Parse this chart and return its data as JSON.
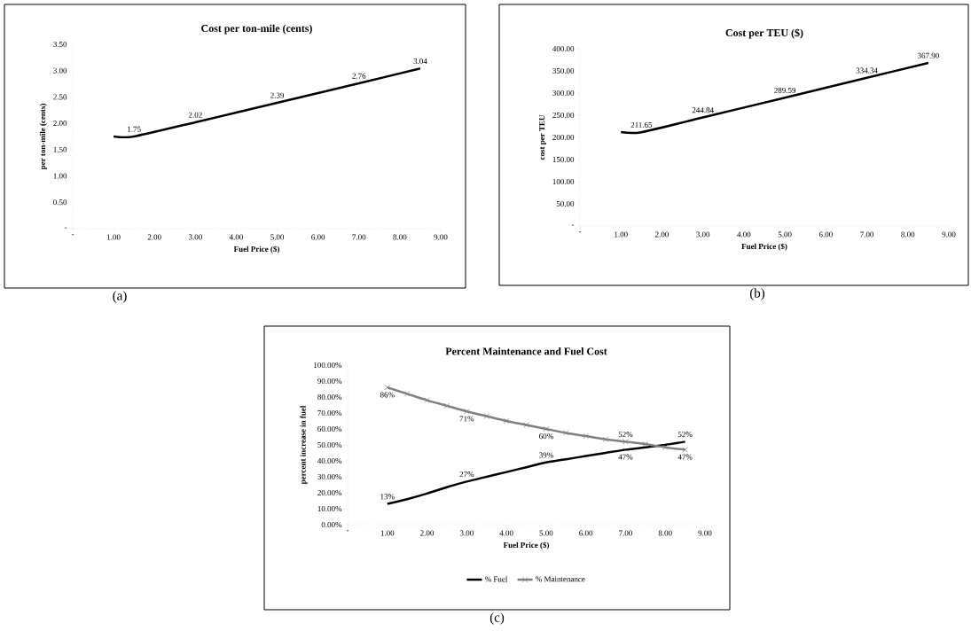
{
  "chart_data": [
    {
      "type": "line",
      "title": "Cost per ton-mile (cents)",
      "xlabel": "Fuel Price ($)",
      "ylabel": "per ton-mile (cents)",
      "x": [
        1,
        1.5,
        3,
        5,
        7,
        8.5
      ],
      "series": [
        {
          "color": "#000000",
          "values": [
            1.75,
            1.75,
            2.02,
            2.39,
            2.76,
            3.04
          ],
          "value_labels": [
            null,
            "1.75",
            "2.02",
            "2.39",
            "2.76",
            "3.04"
          ]
        }
      ],
      "xlim": [
        0,
        9
      ],
      "ylim": [
        0,
        3.5
      ],
      "xticks": [
        {
          "value": 0,
          "label": "-"
        },
        {
          "value": 1,
          "label": "1.00"
        },
        {
          "value": 2,
          "label": "2.00"
        },
        {
          "value": 3,
          "label": "3.00"
        },
        {
          "value": 4,
          "label": "4.00"
        },
        {
          "value": 5,
          "label": "5.00"
        },
        {
          "value": 6,
          "label": "6.00"
        },
        {
          "value": 7,
          "label": "7.00"
        },
        {
          "value": 8,
          "label": "8.00"
        },
        {
          "value": 9,
          "label": "9.00"
        }
      ],
      "yticks": [
        {
          "value": 0,
          "label": "-"
        },
        {
          "value": 0.5,
          "label": "0.50"
        },
        {
          "value": 1,
          "label": "1.00"
        },
        {
          "value": 1.5,
          "label": "1.50"
        },
        {
          "value": 2,
          "label": "2.00"
        },
        {
          "value": 2.5,
          "label": "2.50"
        },
        {
          "value": 3,
          "label": "3.00"
        },
        {
          "value": 3.5,
          "label": "3.50"
        }
      ],
      "annotations": [
        "(a)"
      ]
    },
    {
      "type": "line",
      "title": "Cost per TEU ($)",
      "xlabel": "Fuel Price ($)",
      "ylabel": "cost per TEU",
      "x": [
        1,
        1.5,
        3,
        5,
        7,
        8.5
      ],
      "series": [
        {
          "color": "#000000",
          "values": [
            212,
            211.65,
            244.84,
            289.59,
            334.34,
            367.9
          ],
          "value_labels": [
            null,
            "211.65",
            "244.84",
            "289.59",
            "334.34",
            "367.90"
          ]
        }
      ],
      "xlim": [
        0,
        9
      ],
      "ylim": [
        0,
        400
      ],
      "xticks": [
        {
          "value": 0,
          "label": "-"
        },
        {
          "value": 1,
          "label": "1.00"
        },
        {
          "value": 2,
          "label": "2.00"
        },
        {
          "value": 3,
          "label": "3.00"
        },
        {
          "value": 4,
          "label": "4.00"
        },
        {
          "value": 5,
          "label": "5.00"
        },
        {
          "value": 6,
          "label": "6.00"
        },
        {
          "value": 7,
          "label": "7.00"
        },
        {
          "value": 8,
          "label": "8.00"
        },
        {
          "value": 9,
          "label": "9.00"
        }
      ],
      "yticks": [
        {
          "value": 0,
          "label": "-"
        },
        {
          "value": 50,
          "label": "50.00"
        },
        {
          "value": 100,
          "label": "100.00"
        },
        {
          "value": 150,
          "label": "150.00"
        },
        {
          "value": 200,
          "label": "200.00"
        },
        {
          "value": 250,
          "label": "250.00"
        },
        {
          "value": 300,
          "label": "300.00"
        },
        {
          "value": 350,
          "label": "350.00"
        },
        {
          "value": 400,
          "label": "400.00"
        }
      ],
      "annotations": [
        "(b)"
      ]
    },
    {
      "type": "line",
      "title": "Percent Maintenance and Fuel Cost",
      "xlabel": "Fuel Price ($)",
      "ylabel": "percent increase in fuel",
      "x": [
        1,
        1.5,
        2,
        2.5,
        3,
        3.5,
        4,
        4.5,
        5,
        5.5,
        6,
        6.5,
        7,
        7.5,
        8,
        8.5
      ],
      "series": [
        {
          "name": "% Fuel",
          "color": "#000000",
          "values": [
            13,
            16,
            19.5,
            23.5,
            27,
            30,
            33,
            36,
            39,
            41,
            43,
            45,
            47,
            48.5,
            50,
            52
          ],
          "value_labels": [
            "13%",
            null,
            null,
            null,
            "27%",
            null,
            null,
            null,
            "39%",
            null,
            null,
            null,
            "47%",
            null,
            null,
            "52%"
          ]
        },
        {
          "name": "% Maintenance",
          "color": "#808080",
          "marker": "cross",
          "values": [
            86,
            82,
            78,
            74.5,
            71,
            68,
            65,
            62.5,
            60,
            57.5,
            55.5,
            53.5,
            52,
            50.5,
            48.5,
            47
          ],
          "value_labels": [
            "86%",
            null,
            null,
            null,
            "71%",
            null,
            null,
            null,
            "60%",
            null,
            null,
            null,
            "52%",
            null,
            null,
            "47%"
          ]
        }
      ],
      "xlim": [
        0,
        9
      ],
      "ylim": [
        0,
        100
      ],
      "xticks": [
        {
          "value": 0,
          "label": "-"
        },
        {
          "value": 1,
          "label": "1.00"
        },
        {
          "value": 2,
          "label": "2.00"
        },
        {
          "value": 3,
          "label": "3.00"
        },
        {
          "value": 4,
          "label": "4.00"
        },
        {
          "value": 5,
          "label": "5.00"
        },
        {
          "value": 6,
          "label": "6.00"
        },
        {
          "value": 7,
          "label": "7.00"
        },
        {
          "value": 8,
          "label": "8.00"
        },
        {
          "value": 9,
          "label": "9.00"
        }
      ],
      "yticks": [
        {
          "value": 0,
          "label": "0.00%"
        },
        {
          "value": 10,
          "label": "10.00%"
        },
        {
          "value": 20,
          "label": "20.00%"
        },
        {
          "value": 30,
          "label": "30.00%"
        },
        {
          "value": 40,
          "label": "40.00%"
        },
        {
          "value": 50,
          "label": "50.00%"
        },
        {
          "value": 60,
          "label": "60.00%"
        },
        {
          "value": 70,
          "label": "70.00%"
        },
        {
          "value": 80,
          "label": "80.00%"
        },
        {
          "value": 90,
          "label": "90.00%"
        },
        {
          "value": 100,
          "label": "100.00%"
        }
      ],
      "legend": "bottom",
      "annotations": [
        "(c)"
      ]
    }
  ]
}
